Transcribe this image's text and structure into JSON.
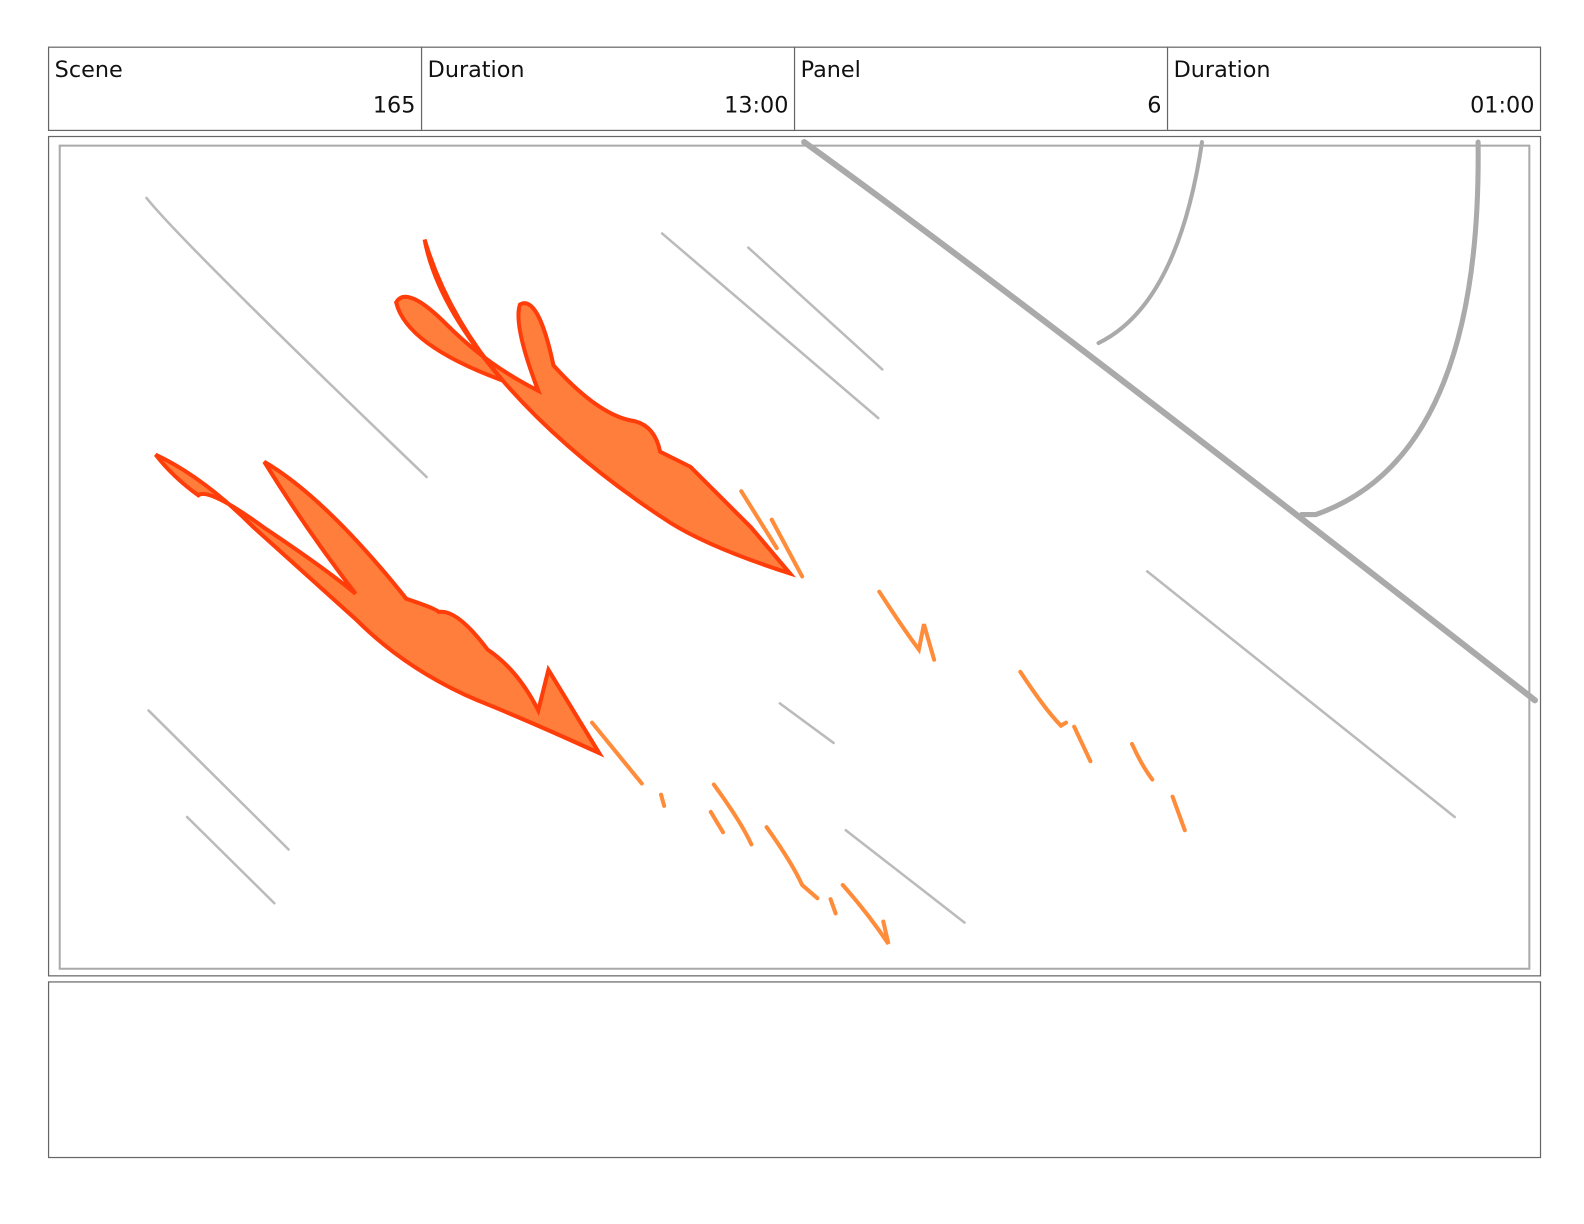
{
  "header": {
    "cells": [
      {
        "label": "Scene",
        "value": "165"
      },
      {
        "label": "Duration",
        "value": "13:00"
      },
      {
        "label": "Panel",
        "value": "6"
      },
      {
        "label": "Duration",
        "value": "01:00"
      }
    ]
  }
}
